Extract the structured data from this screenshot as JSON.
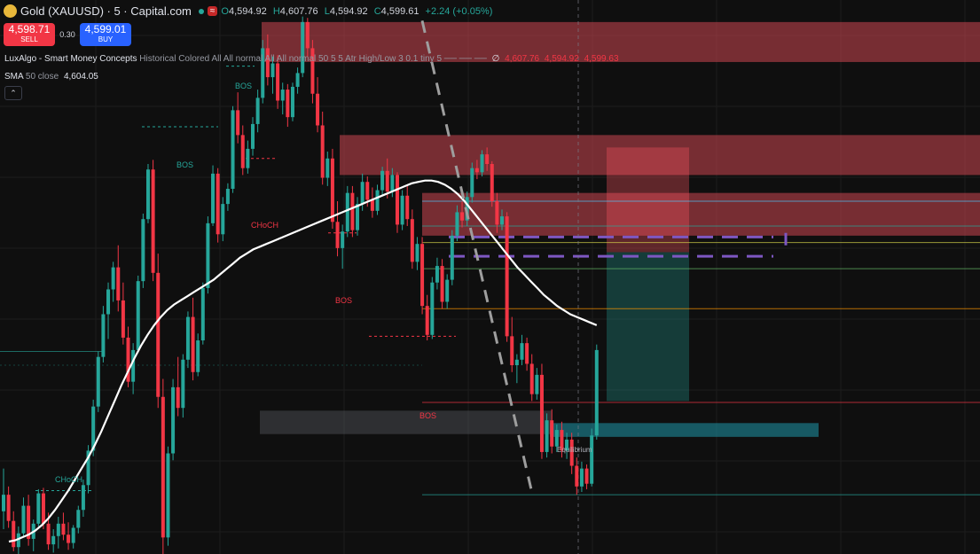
{
  "header": {
    "symbol": "Gold (XAUUSD) · 5 · Capital.com",
    "icon": "gold-coin-icon",
    "o_label": "O",
    "o": "4,594.92",
    "h_label": "H",
    "h": "4,607.76",
    "l_label": "L",
    "l": "4,594.92",
    "c_label": "C",
    "c": "4,599.61",
    "change": "+2.24 (+0.05%)"
  },
  "trade": {
    "sell_price": "4,598.71",
    "sell_label": "SELL",
    "spread": "0.30",
    "buy_price": "4,599.01",
    "buy_label": "BUY"
  },
  "indicators": {
    "lux_name": "LuxAlgo - Smart Money Concepts",
    "lux_params": "Historical Colored All All normal All All normal 50 5 5 Atr High/Low 3 0.1 tiny 5 ── ── ──",
    "lux_symbol": "∅",
    "lux_v1": "4,607.76",
    "lux_v2": "4,594.92",
    "lux_v3": "4,599.63",
    "sma_name": "SMA",
    "sma_params": "50 close",
    "sma_value": "4,604.05",
    "collapse_icon": "chevron-up-icon"
  },
  "colors": {
    "up": "#26a69a",
    "down": "#f23645",
    "bg": "#0f0f0f",
    "sma": "#ffffff",
    "zone_red": "#f7525f",
    "zone_grey": "#787b86",
    "entry": "#7e57c2"
  },
  "chart_data": {
    "type": "candlestick",
    "y_range": [
      4575.6,
      4615.8
    ],
    "annotations": [
      "BOS",
      "BOS",
      "CHoCH",
      "BOS",
      "BOS",
      "CHoCH",
      "Equilibrium"
    ],
    "bars": [
      [
        4578.7,
        4581.8,
        4577.4,
        4579.9
      ],
      [
        4579.9,
        4580.5,
        4577.5,
        4578.0
      ],
      [
        4578.0,
        4578.7,
        4575.8,
        4576.1
      ],
      [
        4576.1,
        4577.6,
        4575.6,
        4577.1
      ],
      [
        4577.1,
        4579.7,
        4576.8,
        4579.1
      ],
      [
        4579.1,
        4579.9,
        4576.2,
        4576.7
      ],
      [
        4576.7,
        4578.1,
        4575.8,
        4577.8
      ],
      [
        4577.8,
        4580.3,
        4577.6,
        4580.0
      ],
      [
        4580.0,
        4580.4,
        4577.4,
        4577.8
      ],
      [
        4577.8,
        4578.6,
        4575.9,
        4576.3
      ],
      [
        4576.3,
        4577.4,
        4575.7,
        4576.9
      ],
      [
        4576.9,
        4578.3,
        4576.0,
        4577.8
      ],
      [
        4577.8,
        4578.6,
        4576.6,
        4577.0
      ],
      [
        4577.0,
        4577.9,
        4575.9,
        4576.4
      ],
      [
        4576.4,
        4577.7,
        4576.0,
        4577.5
      ],
      [
        4577.5,
        4579.1,
        4577.1,
        4578.8
      ],
      [
        4578.8,
        4581.0,
        4578.3,
        4580.6
      ],
      [
        4580.6,
        4583.5,
        4580.0,
        4583.1
      ],
      [
        4583.1,
        4586.8,
        4582.7,
        4586.3
      ],
      [
        4586.3,
        4590.3,
        4585.9,
        4589.9
      ],
      [
        4589.9,
        4593.6,
        4589.5,
        4593.0
      ],
      [
        4593.0,
        4595.3,
        4591.2,
        4594.8
      ],
      [
        4594.8,
        4596.8,
        4593.9,
        4596.4
      ],
      [
        4596.4,
        4598.0,
        4593.2,
        4594.0
      ],
      [
        4594.0,
        4595.3,
        4590.8,
        4591.3
      ],
      [
        4591.3,
        4592.1,
        4587.7,
        4588.1
      ],
      [
        4588.1,
        4590.9,
        4587.2,
        4590.4
      ],
      [
        4590.4,
        4595.8,
        4590.2,
        4595.4
      ],
      [
        4595.4,
        4600.3,
        4594.9,
        4599.9
      ],
      [
        4599.9,
        4603.9,
        4599.6,
        4603.5
      ],
      [
        4603.5,
        4604.2,
        4595.4,
        4596.0
      ],
      [
        4596.0,
        4597.4,
        4586.2,
        4587.0
      ],
      [
        4587.0,
        4588.3,
        4575.6,
        4576.8
      ],
      [
        4576.8,
        4583.4,
        4576.2,
        4582.9
      ],
      [
        4582.9,
        4588.3,
        4582.4,
        4587.7
      ],
      [
        4587.7,
        4589.9,
        4585.6,
        4586.2
      ],
      [
        4586.2,
        4590.1,
        4585.5,
        4589.7
      ],
      [
        4589.7,
        4593.2,
        4589.1,
        4592.8
      ],
      [
        4592.8,
        4594.2,
        4588.2,
        4588.8
      ],
      [
        4588.8,
        4591.6,
        4588.5,
        4591.1
      ],
      [
        4591.1,
        4595.3,
        4590.8,
        4594.9
      ],
      [
        4594.9,
        4600.1,
        4594.5,
        4599.6
      ],
      [
        4599.6,
        4603.8,
        4599.4,
        4603.2
      ],
      [
        4603.2,
        4603.6,
        4598.2,
        4598.8
      ],
      [
        4598.8,
        4601.5,
        4598.3,
        4601.0
      ],
      [
        4601.0,
        4602.5,
        4600.5,
        4602.1
      ],
      [
        4602.1,
        4608.1,
        4601.8,
        4607.8
      ],
      [
        4607.8,
        4609.1,
        4605.4,
        4606.0
      ],
      [
        4606.0,
        4606.7,
        4603.1,
        4603.6
      ],
      [
        4603.6,
        4605.6,
        4603.2,
        4605.0
      ],
      [
        4605.0,
        4607.3,
        4604.5,
        4606.8
      ],
      [
        4606.8,
        4609.3,
        4606.2,
        4608.7
      ],
      [
        4608.7,
        4612.9,
        4608.3,
        4612.3
      ],
      [
        4612.3,
        4613.3,
        4609.6,
        4610.2
      ],
      [
        4610.2,
        4611.7,
        4609.0,
        4611.2
      ],
      [
        4611.2,
        4611.8,
        4607.9,
        4608.5
      ],
      [
        4608.5,
        4609.8,
        4607.5,
        4609.3
      ],
      [
        4609.3,
        4609.7,
        4606.6,
        4607.3
      ],
      [
        4607.3,
        4609.8,
        4607.0,
        4609.5
      ],
      [
        4609.5,
        4610.9,
        4609.0,
        4610.5
      ],
      [
        4610.5,
        4614.6,
        4610.2,
        4614.2
      ],
      [
        4614.2,
        4614.5,
        4611.7,
        4612.3
      ],
      [
        4612.3,
        4612.9,
        4608.3,
        4609.0
      ],
      [
        4609.0,
        4610.2,
        4606.2,
        4606.7
      ],
      [
        4606.7,
        4607.7,
        4602.4,
        4602.9
      ],
      [
        4602.9,
        4604.8,
        4602.3,
        4604.3
      ],
      [
        4604.3,
        4605.0,
        4599.2,
        4599.7
      ],
      [
        4599.7,
        4601.2,
        4597.2,
        4597.8
      ],
      [
        4597.8,
        4599.5,
        4596.3,
        4599.0
      ],
      [
        4599.0,
        4602.3,
        4598.6,
        4601.8
      ],
      [
        4601.8,
        4602.3,
        4598.6,
        4599.1
      ],
      [
        4599.1,
        4601.5,
        4598.7,
        4601.0
      ],
      [
        4601.0,
        4603.2,
        4600.5,
        4602.6
      ],
      [
        4602.6,
        4603.0,
        4600.8,
        4601.3
      ],
      [
        4601.3,
        4602.2,
        4600.0,
        4600.5
      ],
      [
        4600.5,
        4602.4,
        4600.2,
        4602.0
      ],
      [
        4602.0,
        4603.7,
        4601.6,
        4603.4
      ],
      [
        4603.4,
        4604.3,
        4601.4,
        4601.9
      ],
      [
        4601.9,
        4603.6,
        4601.5,
        4603.1
      ],
      [
        4603.1,
        4603.3,
        4598.9,
        4599.5
      ],
      [
        4599.5,
        4602.0,
        4599.1,
        4601.6
      ],
      [
        4601.6,
        4602.4,
        4599.4,
        4599.9
      ],
      [
        4599.9,
        4600.6,
        4596.3,
        4596.8
      ],
      [
        4596.8,
        4598.6,
        4596.2,
        4598.1
      ],
      [
        4598.1,
        4598.6,
        4593.0,
        4593.6
      ],
      [
        4593.6,
        4594.4,
        4591.1,
        4591.5
      ],
      [
        4591.5,
        4595.7,
        4591.2,
        4595.3
      ],
      [
        4595.3,
        4597.1,
        4594.8,
        4596.5
      ],
      [
        4596.5,
        4597.0,
        4593.4,
        4593.9
      ],
      [
        4593.9,
        4595.9,
        4593.4,
        4595.5
      ],
      [
        4595.5,
        4599.1,
        4595.1,
        4598.7
      ],
      [
        4598.7,
        4600.9,
        4598.3,
        4600.4
      ],
      [
        4600.4,
        4601.2,
        4599.3,
        4599.8
      ],
      [
        4599.8,
        4601.9,
        4599.4,
        4601.5
      ],
      [
        4601.5,
        4604.0,
        4601.1,
        4603.6
      ],
      [
        4603.6,
        4604.2,
        4602.8,
        4603.3
      ],
      [
        4603.3,
        4604.9,
        4603.0,
        4604.6
      ],
      [
        4604.6,
        4605.1,
        4603.4,
        4603.9
      ],
      [
        4603.9,
        4604.1,
        4600.8,
        4601.2
      ],
      [
        4601.2,
        4601.8,
        4598.9,
        4599.5
      ],
      [
        4599.5,
        4600.6,
        4599.1,
        4600.1
      ],
      [
        4600.1,
        4600.4,
        4591.0,
        4591.4
      ],
      [
        4591.4,
        4592.8,
        4588.8,
        4589.3
      ],
      [
        4589.3,
        4590.1,
        4588.0,
        4589.7
      ],
      [
        4589.7,
        4591.5,
        4589.3,
        4590.9
      ],
      [
        4590.9,
        4591.3,
        4588.9,
        4589.4
      ],
      [
        4589.4,
        4590.1,
        4586.7,
        4587.2
      ],
      [
        4587.2,
        4589.1,
        4586.8,
        4588.6
      ],
      [
        4588.6,
        4589.4,
        4582.5,
        4583.0
      ],
      [
        4583.0,
        4585.8,
        4582.6,
        4585.3
      ],
      [
        4585.3,
        4586.1,
        4582.9,
        4583.4
      ],
      [
        4583.4,
        4585.0,
        4583.0,
        4584.6
      ],
      [
        4584.6,
        4585.2,
        4582.6,
        4583.1
      ],
      [
        4583.1,
        4584.4,
        4582.5,
        4583.9
      ],
      [
        4583.9,
        4584.4,
        4581.4,
        4582.0
      ],
      [
        4582.0,
        4582.6,
        4579.9,
        4580.5
      ],
      [
        4580.5,
        4582.3,
        4580.1,
        4581.8
      ],
      [
        4581.8,
        4582.1,
        4580.3,
        4580.7
      ],
      [
        4580.7,
        4584.7,
        4580.5,
        4584.2
      ],
      [
        4584.2,
        4590.8,
        4583.9,
        4590.4
      ]
    ],
    "sma50": [
      4576.5,
      4576.6,
      4576.8,
      4577.0,
      4577.3,
      4577.7,
      4578.2,
      4578.8,
      4579.5,
      4580.2,
      4581.0,
      4581.8,
      4582.6,
      4583.5,
      4584.5,
      4585.6,
      4586.7,
      4587.8,
      4588.8,
      4589.8,
      4590.7,
      4591.5,
      4592.2,
      4592.8,
      4593.3,
      4593.7,
      4594.0,
      4594.3,
      4594.6,
      4594.9,
      4595.2,
      4595.5,
      4595.9,
      4596.3,
      4596.7,
      4597.1,
      4597.4,
      4597.7,
      4597.9,
      4598.1,
      4598.3,
      4598.5,
      4598.7,
      4598.9,
      4599.1,
      4599.3,
      4599.5,
      4599.7,
      4599.9,
      4600.1,
      4600.3,
      4600.5,
      4600.7,
      4600.9,
      4601.1,
      4601.3,
      4601.5,
      4601.7,
      4601.9,
      4602.1,
      4602.3,
      4602.5,
      4602.6,
      4602.7,
      4602.7,
      4602.6,
      4602.4,
      4602.1,
      4601.7,
      4601.2,
      4600.6,
      4600.0,
      4599.4,
      4598.8,
      4598.2,
      4597.6,
      4597.0,
      4596.4,
      4595.9,
      4595.4,
      4594.9,
      4594.4,
      4594.0,
      4593.6,
      4593.3,
      4593.0,
      4592.8,
      4592.6,
      4592.4,
      4592.2
    ],
    "zones": [
      {
        "y": [
          4611.3,
          4614.2
        ],
        "color": "red"
      },
      {
        "y": [
          4603.1,
          4606.0
        ],
        "color": "red"
      },
      {
        "y": [
          4598.7,
          4601.8
        ],
        "color": "red"
      },
      {
        "y": [
          4584.3,
          4586.0
        ],
        "color": "grey"
      }
    ],
    "levels": [
      4601.2,
      4599.4,
      4598.2,
      4596.3,
      4593.4,
      4586.6,
      4579.9
    ]
  }
}
